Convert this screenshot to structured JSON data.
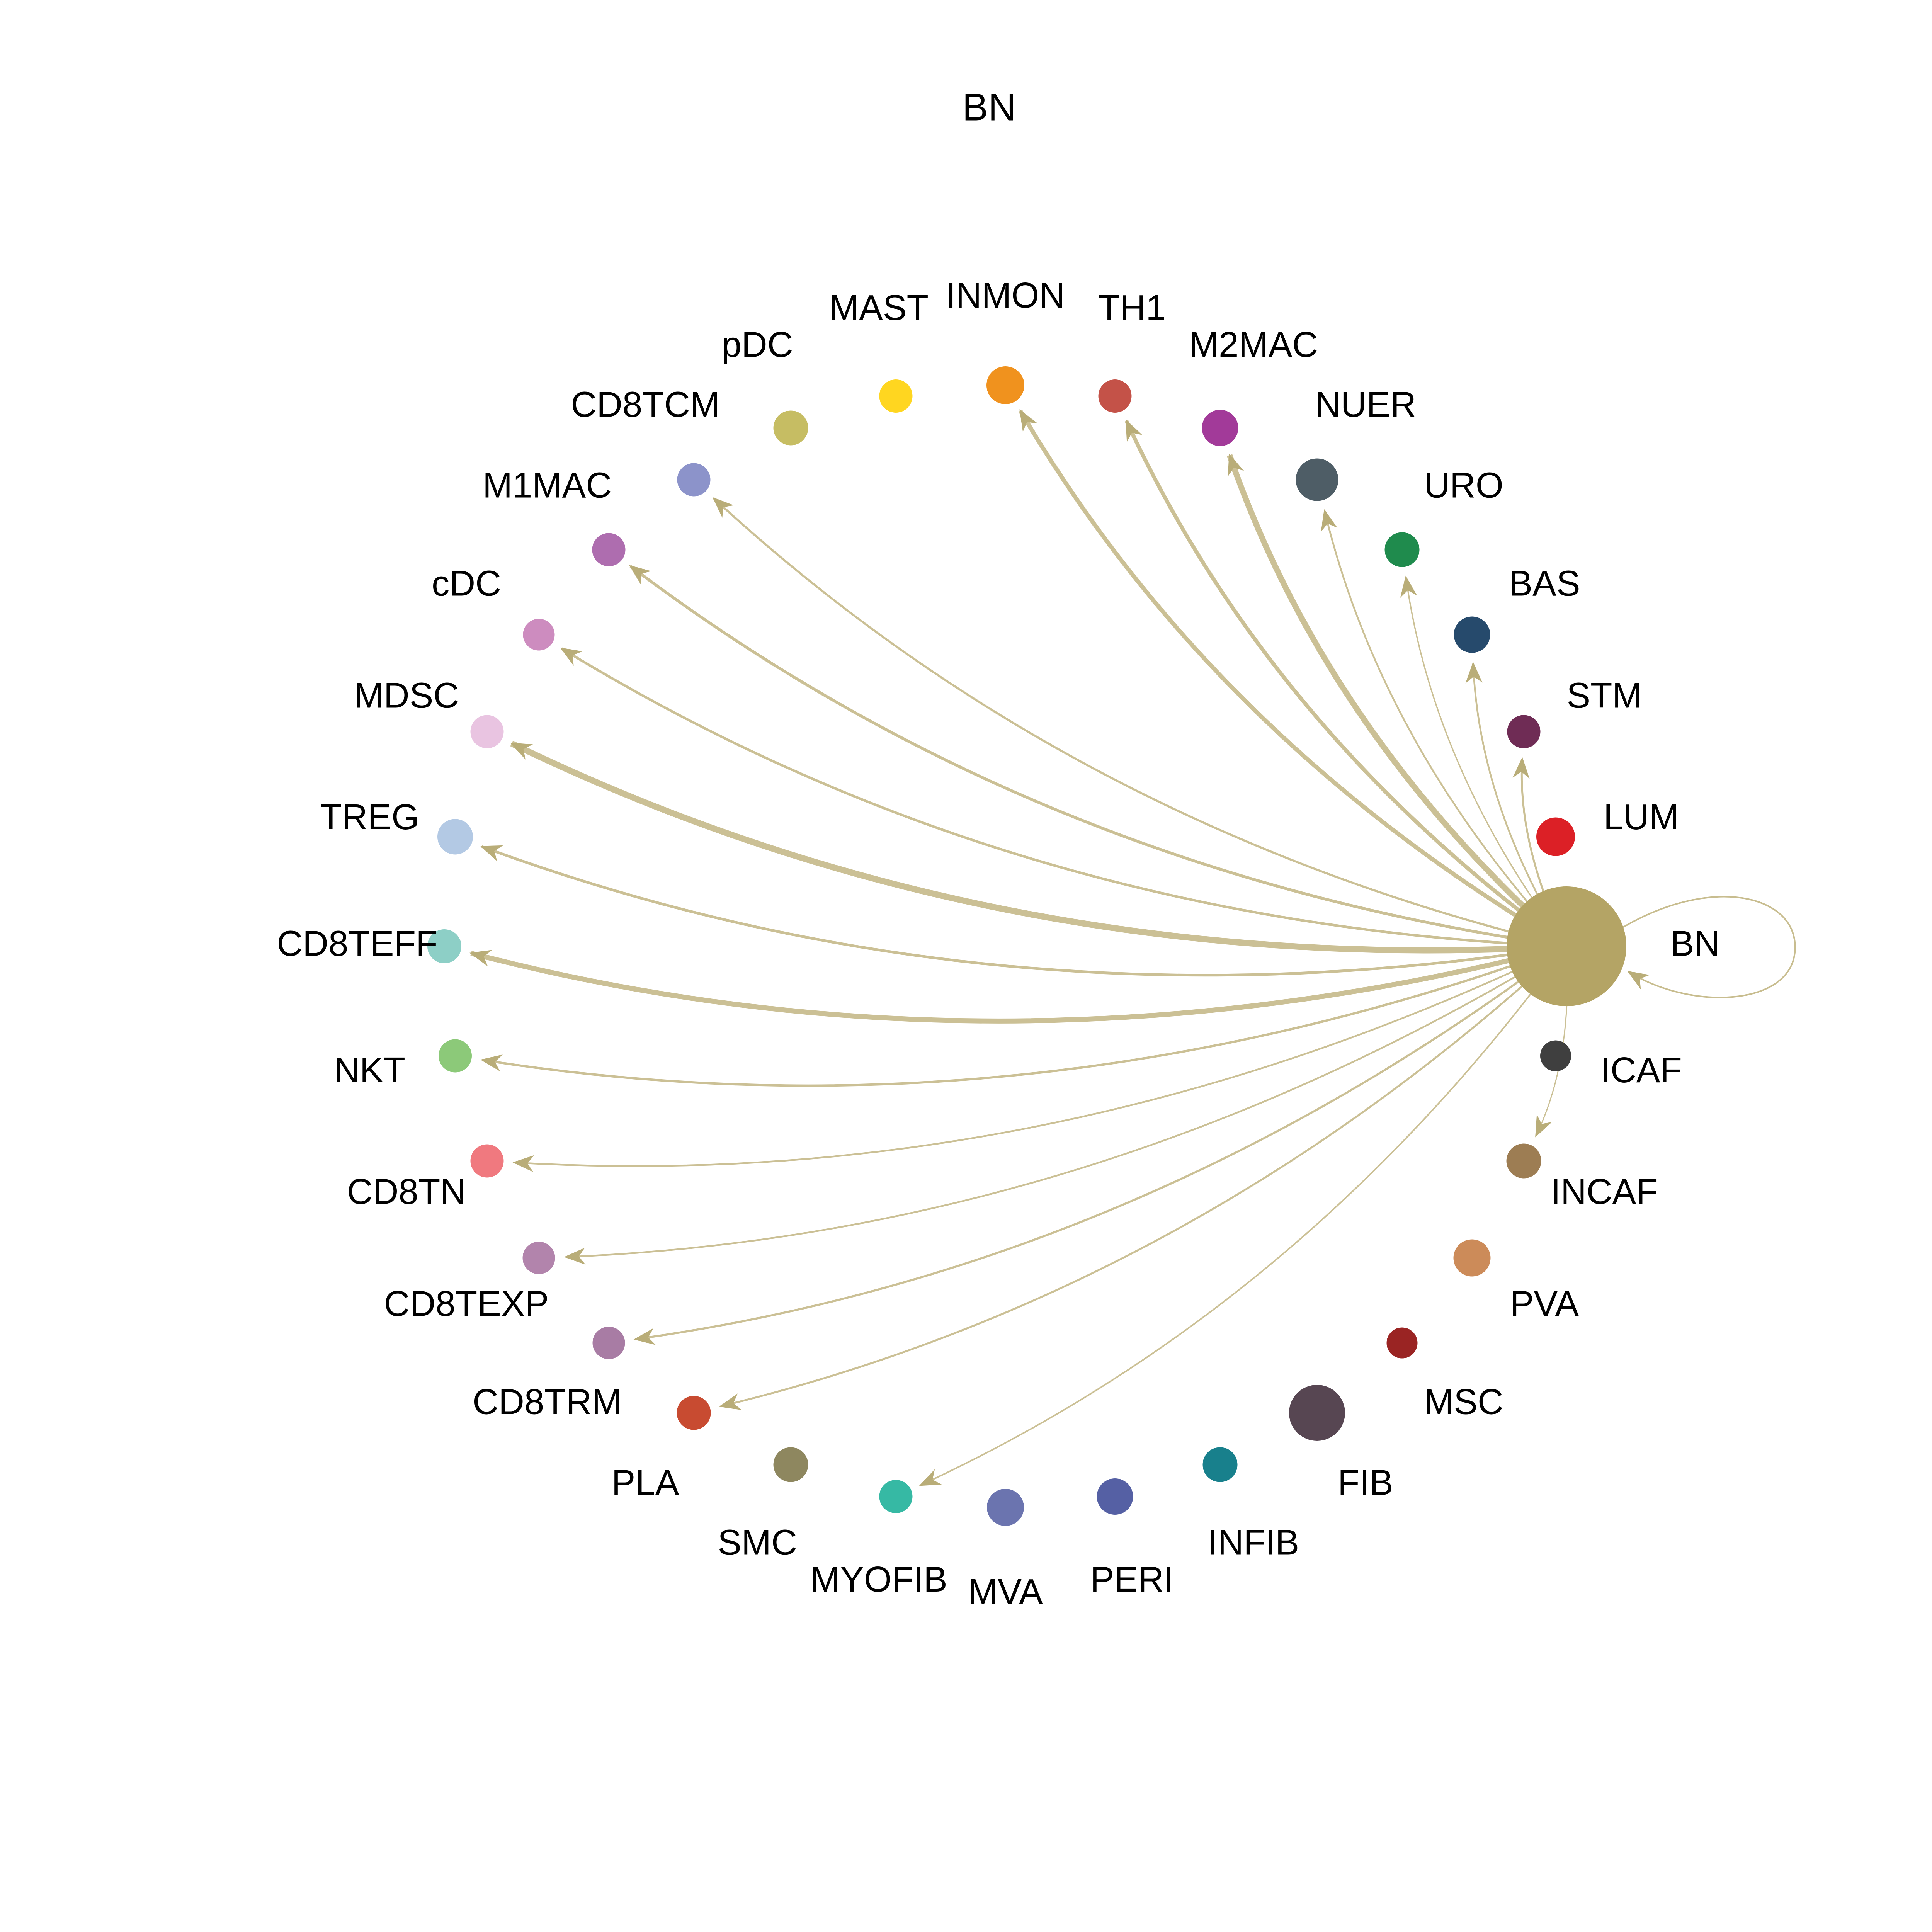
{
  "title": "BN",
  "chart_data": {
    "type": "network",
    "layout": "circle",
    "title": "BN",
    "source_node": "BN",
    "legend_position": "none",
    "grid": false,
    "colors": {
      "background": "#ffffff",
      "edge": "#C8BD8F",
      "arrowhead": "#B9AD78",
      "label": "#000000",
      "title": "#000000"
    },
    "nodes": [
      {
        "id": "BN",
        "color": "#B4A465",
        "size": 31.0
      },
      {
        "id": "LUM",
        "color": "#DC2026",
        "size": 10.0
      },
      {
        "id": "STM",
        "color": "#6F2C55",
        "size": 8.6
      },
      {
        "id": "BAS",
        "color": "#264A6C",
        "size": 9.4
      },
      {
        "id": "URO",
        "color": "#1F8B4D",
        "size": 9.0
      },
      {
        "id": "NUER",
        "color": "#4E5D66",
        "size": 11.0
      },
      {
        "id": "M2MAC",
        "color": "#A23A99",
        "size": 9.4
      },
      {
        "id": "TH1",
        "color": "#C45248",
        "size": 8.6
      },
      {
        "id": "INMON",
        "color": "#F0921E",
        "size": 9.8
      },
      {
        "id": "MAST",
        "color": "#FFD620",
        "size": 8.6
      },
      {
        "id": "pDC",
        "color": "#C6BD63",
        "size": 9.0
      },
      {
        "id": "CD8TCM",
        "color": "#8C93CA",
        "size": 8.6
      },
      {
        "id": "M1MAC",
        "color": "#AE6DAF",
        "size": 8.6
      },
      {
        "id": "cDC",
        "color": "#CD8CBF",
        "size": 8.2
      },
      {
        "id": "MDSC",
        "color": "#E9C4E1",
        "size": 8.6
      },
      {
        "id": "TREG",
        "color": "#B3C9E4",
        "size": 9.2
      },
      {
        "id": "CD8TEFF",
        "color": "#8DCFC6",
        "size": 8.8
      },
      {
        "id": "NKT",
        "color": "#8CC979",
        "size": 8.6
      },
      {
        "id": "CD8TN",
        "color": "#F0797F",
        "size": 8.6
      },
      {
        "id": "CD8TEXP",
        "color": "#B284AC",
        "size": 8.4
      },
      {
        "id": "CD8TRM",
        "color": "#A87CA4",
        "size": 8.4
      },
      {
        "id": "PLA",
        "color": "#C84B31",
        "size": 8.8
      },
      {
        "id": "SMC",
        "color": "#8E875F",
        "size": 9.0
      },
      {
        "id": "MYOFIB",
        "color": "#36B9A4",
        "size": 8.6
      },
      {
        "id": "MVA",
        "color": "#6B74AF",
        "size": 9.6
      },
      {
        "id": "PERI",
        "color": "#5560A4",
        "size": 9.4
      },
      {
        "id": "INFIB",
        "color": "#18808C",
        "size": 9.0
      },
      {
        "id": "FIB",
        "color": "#574652",
        "size": 14.5
      },
      {
        "id": "MSC",
        "color": "#9A2423",
        "size": 8.0
      },
      {
        "id": "PVA",
        "color": "#CC8B59",
        "size": 9.6
      },
      {
        "id": "INCAF",
        "color": "#9D7D53",
        "size": 9.0
      },
      {
        "id": "ICAF",
        "color": "#3F3F3F",
        "size": 8.0
      }
    ],
    "edges": [
      {
        "source": "BN",
        "target": "BN",
        "width": 0.8,
        "self_loop": true
      },
      {
        "source": "BN",
        "target": "INMON",
        "width": 2.2
      },
      {
        "source": "BN",
        "target": "TH1",
        "width": 2.0
      },
      {
        "source": "BN",
        "target": "M2MAC",
        "width": 3.0
      },
      {
        "source": "BN",
        "target": "NUER",
        "width": 0.9
      },
      {
        "source": "BN",
        "target": "URO",
        "width": 0.7
      },
      {
        "source": "BN",
        "target": "BAS",
        "width": 0.9
      },
      {
        "source": "BN",
        "target": "STM",
        "width": 1.0
      },
      {
        "source": "BN",
        "target": "CD8TCM",
        "width": 1.1
      },
      {
        "source": "BN",
        "target": "M1MAC",
        "width": 1.5
      },
      {
        "source": "BN",
        "target": "cDC",
        "width": 1.3
      },
      {
        "source": "BN",
        "target": "MDSC",
        "width": 3.2
      },
      {
        "source": "BN",
        "target": "TREG",
        "width": 1.4
      },
      {
        "source": "BN",
        "target": "CD8TEFF",
        "width": 2.6
      },
      {
        "source": "BN",
        "target": "NKT",
        "width": 1.2
      },
      {
        "source": "BN",
        "target": "CD8TN",
        "width": 0.9
      },
      {
        "source": "BN",
        "target": "CD8TEXP",
        "width": 0.9
      },
      {
        "source": "BN",
        "target": "CD8TRM",
        "width": 1.1
      },
      {
        "source": "BN",
        "target": "PLA",
        "width": 1.0
      },
      {
        "source": "BN",
        "target": "MYOFIB",
        "width": 0.8
      },
      {
        "source": "BN",
        "target": "INCAF",
        "width": 0.6
      }
    ]
  }
}
